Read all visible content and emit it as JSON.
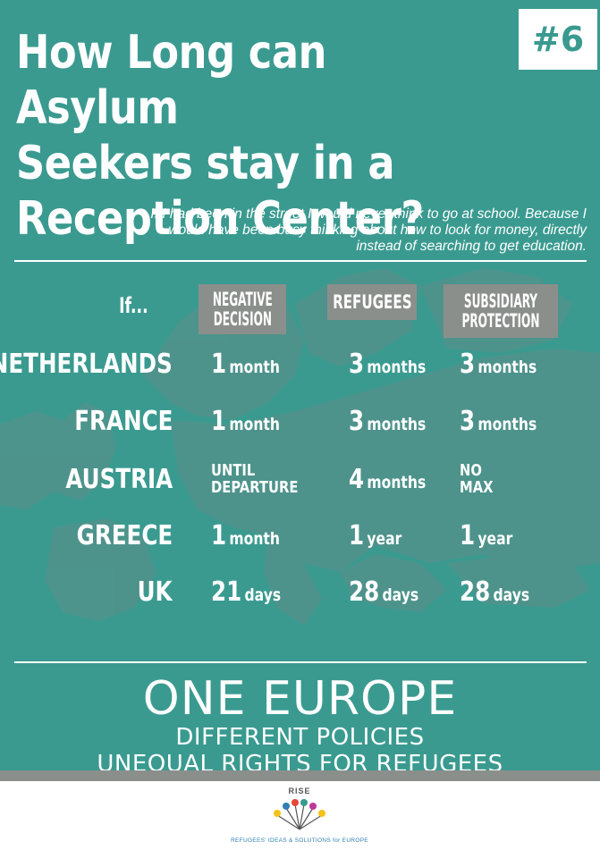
{
  "header": {
    "title_lines": [
      "How Long can Asylum",
      "Seekers stay in a",
      "Reception Center?"
    ],
    "badge": "#6"
  },
  "quote_lines": [
    "If I had been in the street I would never think to go at school. Because I",
    "would have been busy thinking about how to look for money, directly",
    "instead of searching to get education."
  ],
  "table": {
    "corner": "If...",
    "columns": [
      [
        "NEGATIVE",
        "DECISION"
      ],
      [
        "REFUGEES"
      ],
      [
        "SUBSIDIARY",
        "PROTECTION"
      ]
    ],
    "rows": [
      {
        "country": "NETHERLANDS",
        "cells": [
          [
            "1",
            "month"
          ],
          [
            "3",
            "months"
          ],
          [
            "3",
            "months"
          ]
        ]
      },
      {
        "country": "FRANCE",
        "cells": [
          [
            "1",
            "month"
          ],
          [
            "3",
            "months"
          ],
          [
            "3",
            "months"
          ]
        ]
      },
      {
        "country": "AUSTRIA",
        "cells": [
          [
            "UNTIL",
            "DEPARTURE"
          ],
          [
            "4",
            "months"
          ],
          [
            "NO",
            "MAX"
          ]
        ]
      },
      {
        "country": "GREECE",
        "cells": [
          [
            "1",
            "month"
          ],
          [
            "1",
            "year"
          ],
          [
            "1",
            "year"
          ]
        ]
      },
      {
        "country": "UK",
        "cells": [
          [
            "21",
            "days"
          ],
          [
            "28",
            "days"
          ],
          [
            "28",
            "days"
          ]
        ]
      }
    ]
  },
  "footer": {
    "headline": "ONE EUROPE",
    "line1": "DIFFERENT POLICIES",
    "line2": "UNEQUAL RIGHTS FOR REFUGEES"
  },
  "logo": {
    "name": "RISE",
    "tagline": "REFUGEES' IDEAS & SOLUTIONS for EUROPE"
  },
  "colors": {
    "background": "#3a9a90",
    "header_box": "#8a8f8c",
    "text": "#ffffff"
  }
}
